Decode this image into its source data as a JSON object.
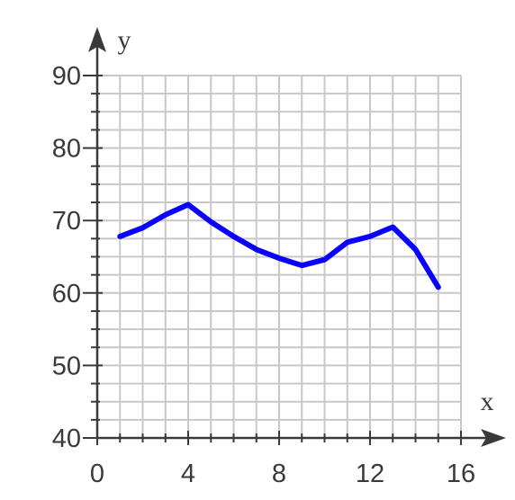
{
  "chart_data": {
    "type": "line",
    "title": "",
    "xlabel": "x",
    "ylabel": "y",
    "xlim": [
      0,
      16
    ],
    "ylim": [
      40,
      90
    ],
    "x_ticks": [
      0,
      4,
      8,
      12,
      16
    ],
    "y_ticks": [
      40,
      50,
      60,
      70,
      80,
      90
    ],
    "x_minor_step": 1,
    "y_minor_step": 2.5,
    "grid": true,
    "legend": "none",
    "colors": {
      "line": "#0a00ff",
      "grid": "#c8c8c8",
      "axis": "#3a3a3a"
    },
    "series": [
      {
        "x": [
          1,
          2,
          3,
          4,
          5,
          6,
          7,
          8,
          9,
          10,
          11,
          12,
          13,
          14,
          15
        ],
        "y": [
          67.8,
          69.0,
          70.8,
          72.2,
          69.8,
          67.8,
          66.0,
          64.8,
          63.8,
          64.6,
          67.0,
          67.8,
          69.1,
          66.0,
          60.8
        ]
      }
    ]
  }
}
